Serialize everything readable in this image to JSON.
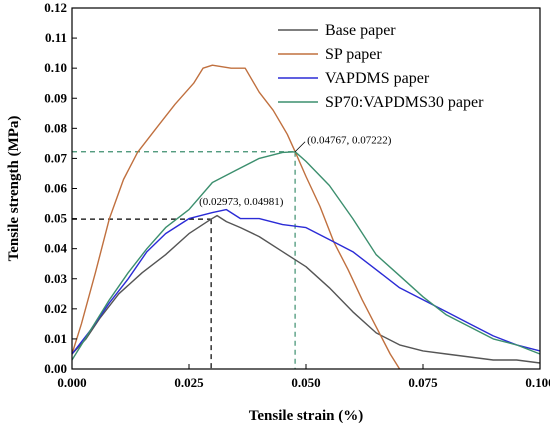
{
  "chart_data": {
    "type": "line",
    "xlabel": "Tensile strain (%)",
    "ylabel": "Tensile strength (MPa)",
    "xlim": [
      0,
      0.1
    ],
    "ylim": [
      0,
      0.12
    ],
    "x_ticks": [
      "0.000",
      "0.025",
      "0.050",
      "0.075",
      "0.100"
    ],
    "y_ticks": [
      "0.00",
      "0.01",
      "0.02",
      "0.03",
      "0.04",
      "0.05",
      "0.06",
      "0.07",
      "0.08",
      "0.09",
      "0.10",
      "0.11",
      "0.12"
    ],
    "legend_position": "top-right",
    "series": [
      {
        "name": "Base paper",
        "color": "#555555",
        "points": [
          [
            0,
            0.005
          ],
          [
            0.003,
            0.01
          ],
          [
            0.006,
            0.017
          ],
          [
            0.01,
            0.025
          ],
          [
            0.015,
            0.032
          ],
          [
            0.02,
            0.038
          ],
          [
            0.025,
            0.045
          ],
          [
            0.0297,
            0.0498
          ],
          [
            0.031,
            0.051
          ],
          [
            0.033,
            0.049
          ],
          [
            0.036,
            0.047
          ],
          [
            0.04,
            0.044
          ],
          [
            0.045,
            0.039
          ],
          [
            0.05,
            0.034
          ],
          [
            0.055,
            0.027
          ],
          [
            0.06,
            0.019
          ],
          [
            0.065,
            0.012
          ],
          [
            0.07,
            0.008
          ],
          [
            0.075,
            0.006
          ],
          [
            0.08,
            0.005
          ],
          [
            0.085,
            0.004
          ],
          [
            0.09,
            0.003
          ],
          [
            0.095,
            0.003
          ],
          [
            0.1,
            0.002
          ]
        ]
      },
      {
        "name": "SP paper",
        "color": "#c0703f",
        "points": [
          [
            0,
            0.005
          ],
          [
            0.002,
            0.015
          ],
          [
            0.005,
            0.032
          ],
          [
            0.008,
            0.05
          ],
          [
            0.011,
            0.063
          ],
          [
            0.014,
            0.072
          ],
          [
            0.018,
            0.08
          ],
          [
            0.022,
            0.088
          ],
          [
            0.026,
            0.095
          ],
          [
            0.028,
            0.1
          ],
          [
            0.03,
            0.101
          ],
          [
            0.034,
            0.1
          ],
          [
            0.037,
            0.1
          ],
          [
            0.04,
            0.092
          ],
          [
            0.043,
            0.086
          ],
          [
            0.046,
            0.078
          ],
          [
            0.0477,
            0.0722
          ],
          [
            0.05,
            0.064
          ],
          [
            0.053,
            0.054
          ],
          [
            0.056,
            0.042
          ],
          [
            0.059,
            0.033
          ],
          [
            0.062,
            0.023
          ],
          [
            0.065,
            0.014
          ],
          [
            0.068,
            0.005
          ],
          [
            0.07,
            0.0
          ]
        ]
      },
      {
        "name": "VAPDMS paper",
        "color": "#2b2bd6",
        "points": [
          [
            0,
            0.005
          ],
          [
            0.004,
            0.013
          ],
          [
            0.008,
            0.022
          ],
          [
            0.012,
            0.03
          ],
          [
            0.016,
            0.039
          ],
          [
            0.02,
            0.045
          ],
          [
            0.025,
            0.05
          ],
          [
            0.03,
            0.052
          ],
          [
            0.033,
            0.053
          ],
          [
            0.036,
            0.05
          ],
          [
            0.04,
            0.05
          ],
          [
            0.045,
            0.048
          ],
          [
            0.05,
            0.047
          ],
          [
            0.055,
            0.043
          ],
          [
            0.06,
            0.039
          ],
          [
            0.065,
            0.033
          ],
          [
            0.07,
            0.027
          ],
          [
            0.075,
            0.023
          ],
          [
            0.08,
            0.019
          ],
          [
            0.085,
            0.015
          ],
          [
            0.09,
            0.011
          ],
          [
            0.095,
            0.008
          ],
          [
            0.1,
            0.006
          ]
        ]
      },
      {
        "name": "SP70:VAPDMS30 paper",
        "color": "#3c8f6e",
        "points": [
          [
            0,
            0.003
          ],
          [
            0.004,
            0.013
          ],
          [
            0.008,
            0.023
          ],
          [
            0.012,
            0.032
          ],
          [
            0.016,
            0.04
          ],
          [
            0.02,
            0.047
          ],
          [
            0.025,
            0.053
          ],
          [
            0.03,
            0.062
          ],
          [
            0.035,
            0.066
          ],
          [
            0.04,
            0.07
          ],
          [
            0.045,
            0.072
          ],
          [
            0.0477,
            0.0722
          ],
          [
            0.05,
            0.069
          ],
          [
            0.055,
            0.061
          ],
          [
            0.06,
            0.05
          ],
          [
            0.065,
            0.038
          ],
          [
            0.07,
            0.031
          ],
          [
            0.075,
            0.024
          ],
          [
            0.08,
            0.018
          ],
          [
            0.085,
            0.014
          ],
          [
            0.09,
            0.01
          ],
          [
            0.095,
            0.008
          ],
          [
            0.1,
            0.005
          ]
        ]
      }
    ],
    "annotations": [
      {
        "text": "(0.02973, 0.04981)",
        "x": 0.02973,
        "y": 0.04981,
        "color": "#000000"
      },
      {
        "text": "(0.04767, 0.07222)",
        "x": 0.04767,
        "y": 0.07222,
        "color": "#3c8f6e"
      }
    ]
  }
}
